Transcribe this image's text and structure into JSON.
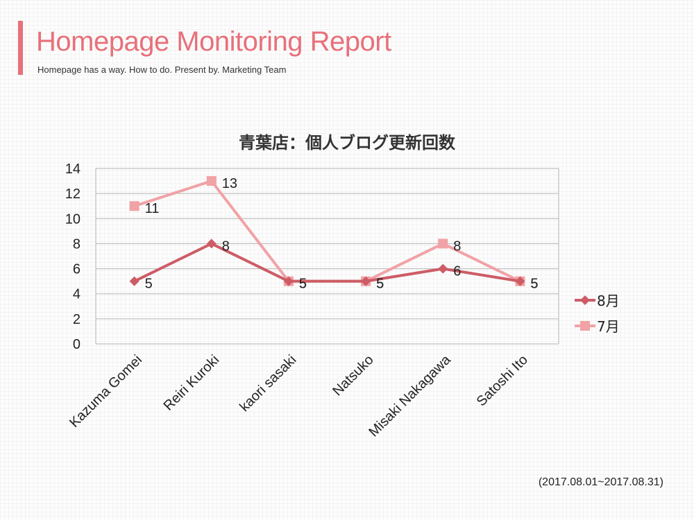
{
  "header": {
    "title": "Homepage Monitoring Report",
    "subtitle": "Homepage has a way. How to do. Present by. Marketing Team"
  },
  "footer": {
    "period": "(2017.08.01~2017.08.31)"
  },
  "colors": {
    "accent": "#e8707a",
    "series_aug": "#cd5c66",
    "series_jul": "#f1a2a6"
  },
  "chart_data": {
    "type": "line",
    "title": "青葉店：個人ブログ更新回数",
    "xlabel": "",
    "ylabel": "",
    "ylim": [
      0,
      14
    ],
    "yticks": [
      0,
      2,
      4,
      6,
      8,
      10,
      12,
      14
    ],
    "grid": true,
    "legend": "right",
    "categories": [
      "Kazuma Gomei",
      "Reiri Kuroki",
      "kaori sasaki",
      "Natsuko",
      "Misaki Nakagawa",
      "Satoshi Ito"
    ],
    "series": [
      {
        "name": "8月",
        "values": [
          5,
          8,
          5,
          5,
          6,
          5
        ],
        "color": "#cd5c66",
        "marker": "diamond"
      },
      {
        "name": "7月",
        "values": [
          11,
          13,
          5,
          5,
          8,
          5
        ],
        "color": "#f1a2a6",
        "marker": "square"
      }
    ]
  }
}
